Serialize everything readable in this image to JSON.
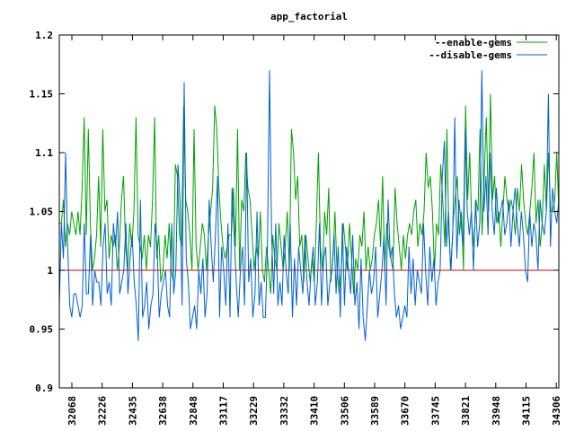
{
  "chart_data": {
    "type": "line",
    "title": "app_factorial",
    "xlabel": "",
    "ylabel": "",
    "ylim": [
      0.9,
      1.2
    ],
    "yticks": [
      "0.9",
      "0.95",
      "1",
      "1.05",
      "1.1",
      "1.15",
      "1.2"
    ],
    "x_tick_labels": [
      "32068",
      "32226",
      "32435",
      "32638",
      "32848",
      "33117",
      "33229",
      "33332",
      "33410",
      "33506",
      "33589",
      "33670",
      "33745",
      "33821",
      "33948",
      "34115",
      "34306"
    ],
    "reference_line": {
      "y": 1.0,
      "color": "#e00000"
    },
    "legend_position": "top-right",
    "series": [
      {
        "name": "--enable-gems",
        "color": "#00a000",
        "values": [
          1.04,
          1.04,
          1.06,
          1.02,
          1.04,
          1.03,
          1.05,
          1.04,
          1.03,
          1.05,
          1.03,
          1.07,
          1.13,
          1.03,
          1.12,
          1.04,
          1.0,
          1.01,
          1.03,
          1.08,
          1.02,
          1.12,
          1.05,
          1.06,
          1.01,
          1.03,
          1.02,
          1.03,
          1.0,
          1.02,
          1.06,
          1.08,
          1.02,
          1.0,
          1.04,
          1.02,
          1.05,
          1.13,
          1.03,
          1.02,
          1.01,
          1.03,
          1.0,
          1.03,
          1.02,
          1.06,
          1.13,
          1.01,
          1.03,
          0.99,
          1.0,
          1.03,
          1.01,
          1.04,
          1.0,
          0.99,
          1.09,
          1.08,
          1.03,
          1.02,
          1.14,
          1.06,
          1.05,
          1.03,
          1.0,
          1.12,
          1.02,
          1.0,
          1.02,
          1.04,
          1.03,
          1.0,
          1.03,
          1.05,
          1.07,
          1.14,
          1.12,
          1.07,
          1.04,
          1.02,
          1.01,
          1.02,
          1.03,
          1.03,
          1.07,
          1.02,
          1.12,
          1.0,
          1.06,
          1.05,
          1.1,
          1.07,
          1.06,
          1.03,
          1.0,
          1.02,
          1.01,
          1.05,
          1.0,
          0.99,
          1.02,
          1.0,
          0.98,
          1.03,
          1.01,
          1.0,
          1.04,
          1.02,
          1.0,
          1.02,
          1.05,
          1.0,
          1.12,
          1.1,
          1.06,
          1.08,
          1.02,
          1.03,
          0.99,
          1.03,
          1.01,
          0.99,
          1.01,
          0.99,
          1.04,
          1.1,
          1.02,
          1.0,
          1.05,
          1.03,
          1.07,
          0.99,
          1.01,
          1.05,
          1.0,
          0.98,
          1.0,
          1.04,
          1.02,
          1.0,
          1.04,
          1.01,
          0.98,
          1.01,
          1.0,
          1.03,
          1.02,
          1.05,
          1.0,
          1.02,
          1.0,
          1.01,
          1.03,
          1.04,
          1.06,
          1.02,
          1.08,
          1.0,
          1.04,
          1.02,
          1.01,
          1.0,
          1.07,
          1.04,
          1.02,
          1.0,
          1.03,
          1.01,
          1.03,
          1.04,
          1.03,
          1.05,
          1.06,
          1.02,
          1.04,
          1.03,
          1.05,
          1.1,
          1.07,
          1.08,
          1.05,
          1.0,
          1.04,
          1.03,
          1.09,
          1.06,
          1.02,
          1.12,
          1.03,
          1.0,
          1.04,
          1.06,
          1.08,
          1.03,
          1.05,
          1.0,
          1.14,
          1.06,
          1.1,
          1.04,
          1.02,
          1.06,
          1.05,
          1.12,
          1.03,
          1.08,
          1.13,
          1.05,
          1.15,
          1.06,
          1.08,
          1.04,
          1.05,
          1.02,
          1.05,
          1.08,
          1.06,
          1.05,
          1.06,
          1.05,
          1.03,
          1.07,
          1.05,
          1.09,
          1.06,
          1.04,
          1.03,
          1.05,
          1.07,
          1.1,
          1.04,
          1.06,
          1.02,
          1.04,
          1.09,
          1.05,
          1.1,
          1.05,
          1.05,
          1.06,
          1.1,
          1.05
        ]
      },
      {
        "name": "--disable-gems",
        "color": "#0060d0",
        "values": [
          0.97,
          1.04,
          1.01,
          1.1,
          1.02,
          0.97,
          0.96,
          0.98,
          0.98,
          0.97,
          0.96,
          0.97,
          1.04,
          0.98,
          0.98,
          1.03,
          0.97,
          1.0,
          0.99,
          0.99,
          0.97,
          1.02,
          1.04,
          0.98,
          0.99,
          0.97,
          1.04,
          1.02,
          1.05,
          0.98,
          0.99,
          1.0,
          1.04,
          0.98,
          1.01,
          1.03,
          0.99,
          0.97,
          0.94,
          1.06,
          0.96,
          0.97,
          0.99,
          0.95,
          0.97,
          0.98,
          1.04,
          1.02,
          0.96,
          0.98,
          0.99,
          1.0,
          0.97,
          0.96,
          1.04,
          0.98,
          1.0,
          1.09,
          1.06,
          0.97,
          1.16,
          1.01,
          0.99,
          0.95,
          0.96,
          0.97,
          0.95,
          1.0,
          0.98,
          1.01,
          0.96,
          0.98,
          1.06,
          1.02,
          0.99,
          1.03,
          1.08,
          0.96,
          1.02,
          1.0,
          0.97,
          1.04,
          0.96,
          1.07,
          1.03,
          0.99,
          0.96,
          1.0,
          1.02,
          0.97,
          1.1,
          0.99,
          1.01,
          0.96,
          0.98,
          1.05,
          0.97,
          0.99,
          0.96,
          0.96,
          1.02,
          1.17,
          1.03,
          0.98,
          1.04,
          0.97,
          0.99,
          0.97,
          1.03,
          1.0,
          0.98,
          1.04,
          0.96,
          1.01,
          0.97,
          1.02,
          1.0,
          0.98,
          1.03,
          0.99,
          0.97,
          1.0,
          1.02,
          0.97,
          0.99,
          1.04,
          0.97,
          1.01,
          1.02,
          0.97,
          0.99,
          1.0,
          1.03,
          0.98,
          1.02,
          0.96,
          1.04,
          0.97,
          1.02,
          1.0,
          0.98,
          1.03,
          0.97,
          0.99,
          0.95,
          1.01,
          0.96,
          0.94,
          0.97,
          1.0,
          0.98,
          0.99,
          1.02,
          0.96,
          0.98,
          1.0,
          1.03,
          0.97,
          1.06,
          1.01,
          1.02,
          0.98,
          0.96,
          0.97,
          0.95,
          0.96,
          0.97,
          0.96,
          1.02,
          0.98,
          1.01,
          0.97,
          1.0,
          0.99,
          0.98,
          1.04,
          1.0,
          0.97,
          1.02,
          0.99,
          1.01,
          0.97,
          0.99,
          1.0,
          1.08,
          1.11,
          1.02,
          1.05,
          1.0,
          1.03,
          1.13,
          1.01,
          1.06,
          1.04,
          1.02,
          1.12,
          1.05,
          1.03,
          1.05,
          1.0,
          1.06,
          1.02,
          1.04,
          1.17,
          1.05,
          1.08,
          1.03,
          1.1,
          1.05,
          1.03,
          1.07,
          1.04,
          1.05,
          1.06,
          1.03,
          1.04,
          1.06,
          1.02,
          1.05,
          1.07,
          1.04,
          1.02,
          1.05,
          1.03,
          1.0,
          0.99,
          1.05,
          1.02,
          1.04,
          1.03,
          1.0,
          1.06,
          1.04,
          1.03,
          1.05,
          1.15,
          1.02,
          1.07,
          1.05,
          1.04,
          1.06
        ]
      }
    ]
  }
}
